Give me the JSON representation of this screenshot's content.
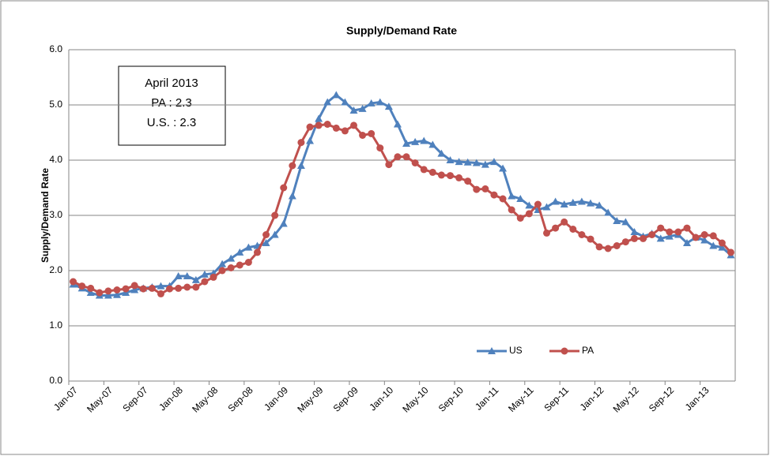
{
  "chart_data": {
    "type": "line",
    "title": "Supply/Demand Rate",
    "y_label": "Supply/Demand Rate",
    "annotation": [
      "April 2013",
      "PA : 2.3",
      "U.S. : 2.3"
    ],
    "categories": [
      "Jan-07",
      null,
      null,
      null,
      "May-07",
      null,
      null,
      null,
      "Sep-07",
      null,
      null,
      null,
      "Jan-08",
      null,
      null,
      null,
      "May-08",
      null,
      null,
      null,
      "Sep-08",
      null,
      null,
      null,
      "Jan-09",
      null,
      null,
      null,
      "May-09",
      null,
      null,
      null,
      "Sep-09",
      null,
      null,
      null,
      "Jan-10",
      null,
      null,
      null,
      "May-10",
      null,
      null,
      null,
      "Sep-10",
      null,
      null,
      null,
      "Jan-11",
      null,
      null,
      null,
      "May-11",
      null,
      null,
      null,
      "Sep-11",
      null,
      null,
      null,
      "Jan-12",
      null,
      null,
      null,
      "May-12",
      null,
      null,
      null,
      "Sep-12",
      null,
      null,
      null,
      "Jan-13",
      null,
      null,
      null
    ],
    "series": [
      {
        "name": "US",
        "color": "#4f81bd",
        "marker": "triangle",
        "values": [
          1.75,
          1.68,
          1.6,
          1.55,
          1.55,
          1.56,
          1.6,
          1.65,
          1.68,
          1.7,
          1.72,
          1.72,
          1.9,
          1.9,
          1.83,
          1.93,
          1.95,
          2.12,
          2.22,
          2.33,
          2.42,
          2.45,
          2.5,
          2.65,
          2.85,
          3.35,
          3.9,
          4.35,
          4.75,
          5.05,
          5.18,
          5.05,
          4.9,
          4.93,
          5.03,
          5.05,
          4.97,
          4.65,
          4.3,
          4.33,
          4.35,
          4.28,
          4.12,
          4.0,
          3.97,
          3.96,
          3.95,
          3.92,
          3.97,
          3.85,
          3.35,
          3.3,
          3.18,
          3.1,
          3.15,
          3.25,
          3.2,
          3.23,
          3.25,
          3.22,
          3.18,
          3.05,
          2.9,
          2.88,
          2.7,
          2.62,
          2.67,
          2.58,
          2.62,
          2.65,
          2.5,
          2.6,
          2.55,
          2.45,
          2.42,
          2.28
        ]
      },
      {
        "name": "PA",
        "color": "#c0504d",
        "marker": "circle",
        "values": [
          1.8,
          1.72,
          1.68,
          1.6,
          1.63,
          1.65,
          1.67,
          1.73,
          1.67,
          1.68,
          1.58,
          1.67,
          1.68,
          1.7,
          1.7,
          1.8,
          1.88,
          2.0,
          2.05,
          2.1,
          2.15,
          2.33,
          2.65,
          3.0,
          3.5,
          3.9,
          4.32,
          4.6,
          4.63,
          4.65,
          4.58,
          4.53,
          4.63,
          4.45,
          4.48,
          4.22,
          3.92,
          4.06,
          4.06,
          3.95,
          3.83,
          3.78,
          3.73,
          3.72,
          3.68,
          3.62,
          3.47,
          3.48,
          3.37,
          3.3,
          3.1,
          2.95,
          3.03,
          3.2,
          2.68,
          2.77,
          2.88,
          2.75,
          2.65,
          2.57,
          2.43,
          2.4,
          2.45,
          2.52,
          2.58,
          2.58,
          2.65,
          2.77,
          2.7,
          2.7,
          2.77,
          2.6,
          2.65,
          2.63,
          2.5,
          2.33
        ]
      }
    ],
    "ylim": [
      0,
      6
    ],
    "yticks": [
      {
        "value": 0,
        "label": "0.0"
      },
      {
        "value": 1,
        "label": "1.0"
      },
      {
        "value": 2,
        "label": "2.0"
      },
      {
        "value": 3,
        "label": "3.0"
      },
      {
        "value": 4,
        "label": "4.0"
      },
      {
        "value": 5,
        "label": "5.0"
      },
      {
        "value": 6,
        "label": "6.0"
      }
    ],
    "grid": true
  }
}
